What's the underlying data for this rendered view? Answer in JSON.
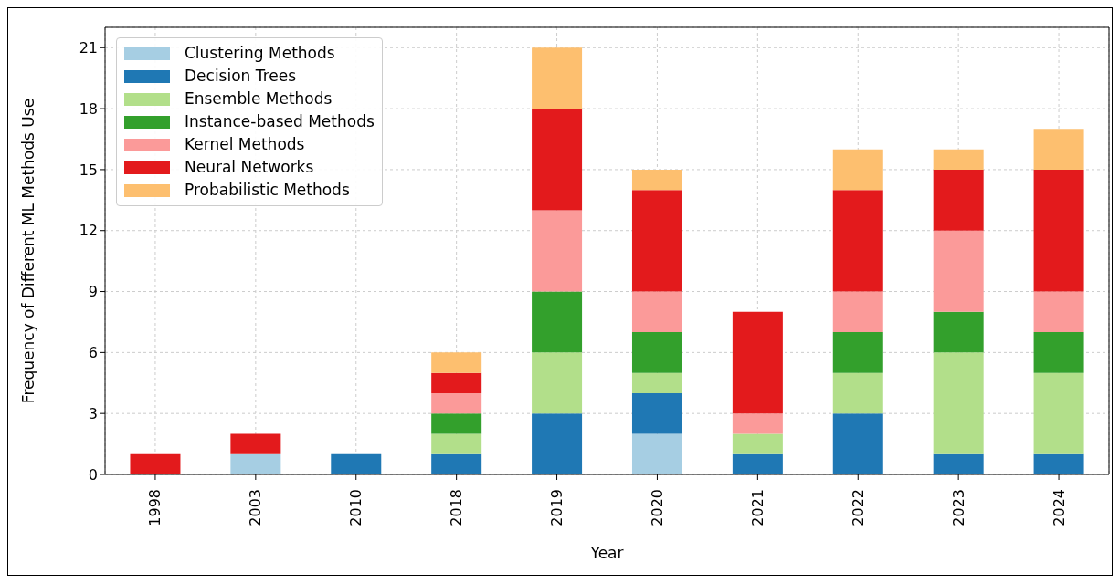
{
  "chart_data": {
    "type": "bar",
    "stacked": true,
    "xlabel": "Year",
    "ylabel": "Frequency of Different ML Methods Use",
    "categories": [
      "1998",
      "2003",
      "2010",
      "2018",
      "2019",
      "2020",
      "2021",
      "2022",
      "2023",
      "2024"
    ],
    "series": [
      {
        "name": "Clustering Methods",
        "color": "#a6cee3",
        "values": [
          0,
          1,
          0,
          0,
          0,
          2,
          0,
          0,
          0,
          0
        ]
      },
      {
        "name": "Decision Trees",
        "color": "#1f78b4",
        "values": [
          0,
          0,
          1,
          1,
          3,
          2,
          1,
          3,
          1,
          1
        ]
      },
      {
        "name": "Ensemble Methods",
        "color": "#b2df8a",
        "values": [
          0,
          0,
          0,
          1,
          3,
          1,
          1,
          2,
          5,
          4
        ]
      },
      {
        "name": "Instance-based Methods",
        "color": "#33a02c",
        "values": [
          0,
          0,
          0,
          1,
          3,
          2,
          0,
          2,
          2,
          2
        ]
      },
      {
        "name": "Kernel Methods",
        "color": "#fb9a99",
        "values": [
          0,
          0,
          0,
          1,
          4,
          2,
          1,
          2,
          4,
          2
        ]
      },
      {
        "name": "Neural Networks",
        "color": "#e31a1c",
        "values": [
          1,
          1,
          0,
          1,
          5,
          5,
          5,
          5,
          3,
          6
        ]
      },
      {
        "name": "Probabilistic Methods",
        "color": "#fdbf6f",
        "values": [
          0,
          0,
          0,
          1,
          3,
          1,
          0,
          2,
          1,
          2
        ]
      }
    ],
    "ylim": [
      0,
      22
    ],
    "yticks": [
      0,
      3,
      6,
      9,
      12,
      15,
      18,
      21
    ],
    "grid": true,
    "legend": "top left"
  }
}
